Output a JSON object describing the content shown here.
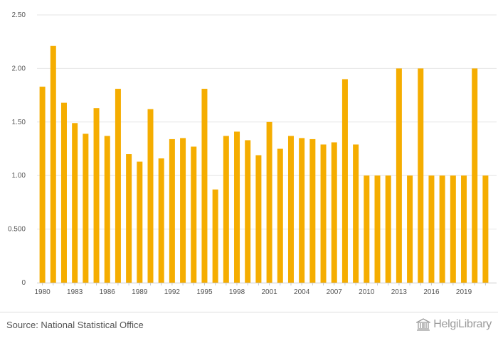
{
  "chart_data": {
    "type": "bar",
    "title": "",
    "xlabel": "",
    "ylabel": "",
    "ylim": [
      0,
      2.5
    ],
    "y_ticks": [
      0,
      0.5,
      1.0,
      1.5,
      2.0,
      2.5
    ],
    "y_tick_labels": [
      "0",
      "0.500",
      "1.00",
      "1.50",
      "2.00",
      "2.50"
    ],
    "x_tick_labels": [
      "1980",
      "1983",
      "1986",
      "1989",
      "1992",
      "1995",
      "1998",
      "2001",
      "2004",
      "2007",
      "2010",
      "2013",
      "2016",
      "2019"
    ],
    "categories": [
      "1980",
      "1981",
      "1982",
      "1983",
      "1984",
      "1985",
      "1986",
      "1987",
      "1988",
      "1989",
      "1990",
      "1991",
      "1992",
      "1993",
      "1994",
      "1995",
      "1996",
      "1997",
      "1998",
      "1999",
      "2000",
      "2001",
      "2002",
      "2003",
      "2004",
      "2005",
      "2006",
      "2007",
      "2008",
      "2009",
      "2010",
      "2011",
      "2012",
      "2013",
      "2014",
      "2015",
      "2016",
      "2017",
      "2018",
      "2019",
      "2020",
      "2021"
    ],
    "series": [
      {
        "values": [
          1.83,
          2.21,
          1.68,
          1.49,
          1.39,
          1.63,
          1.37,
          1.81,
          1.2,
          1.13,
          1.62,
          1.16,
          1.34,
          1.35,
          1.27,
          1.81,
          0.87,
          1.37,
          1.41,
          1.33,
          1.19,
          1.5,
          1.25,
          1.37,
          1.35,
          1.34,
          1.29,
          1.31,
          1.9,
          1.29,
          1.0,
          1.0,
          1.0,
          2.0,
          1.0,
          2.0,
          1.0,
          1.0,
          1.0,
          1.0,
          2.0,
          1.0
        ],
        "color": "#f5ad00"
      }
    ],
    "grid": true,
    "legend": "none"
  },
  "footer": {
    "source": "Source: National Statistical Office",
    "logo_text": "HelgiLibrary"
  }
}
